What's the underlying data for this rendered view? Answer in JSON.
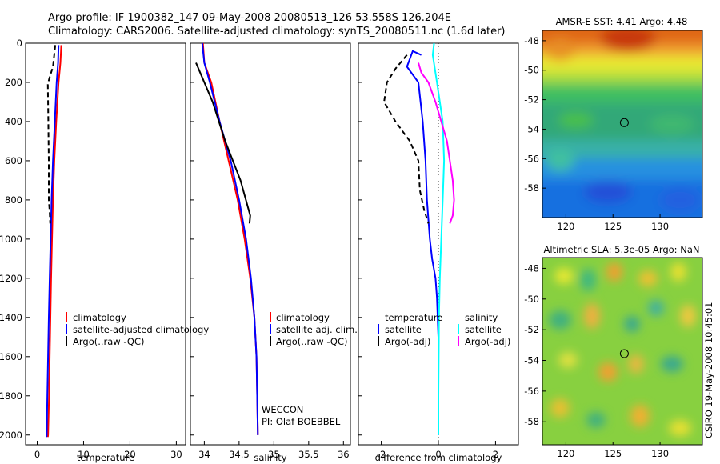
{
  "header": {
    "line1": "Argo profile: IF 1900382_147 09-May-2008 20080513_126 53.558S 126.204E",
    "line2": "Climatology: CARS2006. Satellite-adjusted climatology: synTS_20080511.nc (1.6d later)"
  },
  "colors": {
    "climatology": "#ff0000",
    "satellite": "#0000ff",
    "argo": "#000000",
    "salinity_satellite": "#00ffff",
    "salinity_argo": "#ff00ff"
  },
  "chart_data": [
    {
      "type": "line",
      "panel": "temperature",
      "xlabel": "temperature",
      "ylabel": "",
      "xlim": [
        -2.5,
        32
      ],
      "ylim": [
        2050,
        0
      ],
      "xticks": [
        0,
        10,
        20,
        30
      ],
      "yticks": [
        0,
        200,
        400,
        600,
        800,
        1000,
        1200,
        1400,
        1600,
        1800,
        2000
      ],
      "legend": [
        "climatology",
        "satellite-adjusted climatology",
        "Argo(..raw -QC)"
      ],
      "series": [
        {
          "name": "climatology",
          "color": "#ff0000",
          "x": [
            5.2,
            5.0,
            4.6,
            4.1,
            3.7,
            3.4,
            3.2,
            3.0,
            2.85,
            2.7,
            2.55,
            2.35,
            2.3
          ],
          "y": [
            10,
            100,
            200,
            400,
            600,
            800,
            1000,
            1200,
            1400,
            1600,
            1800,
            2000,
            2010
          ]
        },
        {
          "name": "satellite-adjusted climatology",
          "color": "#0000ff",
          "x": [
            4.6,
            4.5,
            4.2,
            3.8,
            3.4,
            3.1,
            2.9,
            2.7,
            2.5,
            2.35,
            2.2,
            2.05,
            2.0
          ],
          "y": [
            10,
            100,
            200,
            400,
            600,
            800,
            1000,
            1200,
            1400,
            1600,
            1800,
            2000,
            2010
          ]
        },
        {
          "name": "Argo(..raw -QC)",
          "color": "#000000",
          "dashed": true,
          "x": [
            3.9,
            3.4,
            2.6,
            2.3,
            2.4,
            2.5,
            2.5,
            2.7,
            2.8
          ],
          "y": [
            10,
            120,
            180,
            210,
            400,
            600,
            800,
            860,
            920
          ]
        }
      ]
    },
    {
      "type": "line",
      "panel": "salinity",
      "xlabel": "salinity",
      "ylabel": "",
      "xlim": [
        33.8,
        36.1
      ],
      "ylim": [
        2050,
        0
      ],
      "xticks": [
        34,
        34.5,
        35,
        35.5,
        36
      ],
      "legend": [
        "climatology",
        "satellite adj. clim.",
        "Argo(..raw -QC)"
      ],
      "series": [
        {
          "name": "climatology",
          "color": "#ff0000",
          "x": [
            33.98,
            34.0,
            34.1,
            34.22,
            34.35,
            34.48,
            34.58,
            34.66,
            34.72,
            34.75,
            34.76,
            34.77
          ],
          "y": [
            0,
            100,
            200,
            400,
            600,
            800,
            1000,
            1200,
            1400,
            1600,
            1800,
            2000
          ]
        },
        {
          "name": "satellite adj. clim.",
          "color": "#0000ff",
          "x": [
            33.97,
            34.0,
            34.08,
            34.22,
            34.38,
            34.5,
            34.6,
            34.67,
            34.72,
            34.75,
            34.76,
            34.77
          ],
          "y": [
            0,
            100,
            200,
            400,
            600,
            800,
            1000,
            1200,
            1400,
            1600,
            1800,
            2000
          ]
        },
        {
          "name": "Argo(..raw -QC)",
          "color": "#000000",
          "x": [
            33.88,
            34.0,
            34.12,
            34.3,
            34.52,
            34.66,
            34.65
          ],
          "y": [
            100,
            200,
            300,
            500,
            700,
            880,
            920
          ]
        }
      ]
    },
    {
      "type": "line",
      "panel": "difference",
      "xlabel": "difference from climatology",
      "ylabel": "",
      "xlim": [
        -2.8,
        2.8
      ],
      "ylim": [
        2050,
        0
      ],
      "xticks": [
        -2,
        0,
        2
      ],
      "legend": [
        "temperature",
        "satellite",
        "Argo(-adj)",
        "salinity",
        "satellite",
        "Argo(-adj)"
      ],
      "series": [
        {
          "name": "temperature satellite",
          "color": "#0000ff",
          "x": [
            -0.6,
            -0.9,
            -1.1,
            -0.7,
            -0.55,
            -0.45,
            -0.4,
            -0.35,
            -0.3,
            -0.22,
            -0.1,
            -0.05,
            0,
            0,
            0
          ],
          "y": [
            60,
            40,
            120,
            200,
            400,
            600,
            800,
            900,
            1000,
            1100,
            1200,
            1300,
            1500,
            1800,
            2000
          ]
        },
        {
          "name": "temperature Argo(-adj)",
          "color": "#000000",
          "dashed": true,
          "x": [
            -1.1,
            -1.5,
            -1.8,
            -1.9,
            -1.7,
            -1.5,
            -1.0,
            -0.7,
            -0.65,
            -0.5,
            -0.35
          ],
          "y": [
            60,
            130,
            200,
            300,
            350,
            400,
            500,
            600,
            750,
            850,
            920
          ]
        },
        {
          "name": "salinity satellite",
          "color": "#00ffff",
          "x": [
            -0.15,
            -0.2,
            -0.05,
            0.15,
            0.2,
            0.15,
            0.1,
            0.05,
            0.02,
            0,
            0
          ],
          "y": [
            0,
            60,
            200,
            400,
            600,
            800,
            1000,
            1200,
            1400,
            1800,
            2000
          ]
        },
        {
          "name": "salinity Argo(-adj)",
          "color": "#ff00ff",
          "x": [
            -0.7,
            -0.6,
            -0.35,
            -0.1,
            0.1,
            0.3,
            0.4,
            0.5,
            0.55,
            0.5,
            0.4
          ],
          "y": [
            100,
            150,
            200,
            300,
            400,
            500,
            600,
            700,
            800,
            880,
            920
          ]
        }
      ]
    },
    {
      "type": "heatmap",
      "panel": "sst-map",
      "title": "AMSR-E SST: 4.41 Argo: 4.48",
      "xlim": [
        117.5,
        134.5
      ],
      "ylim": [
        -60,
        -47.3
      ],
      "xticks": [
        120,
        125,
        130
      ],
      "yticks": [
        -48,
        -50,
        -52,
        -54,
        -56,
        -58
      ],
      "marker": {
        "lon": 126.204,
        "lat": -53.558
      },
      "colormap": "jet"
    },
    {
      "type": "heatmap",
      "panel": "sla-map",
      "title": "Altimetric SLA: 5.3e-05 Argo: NaN",
      "xlim": [
        117.5,
        134.5
      ],
      "ylim": [
        -59.5,
        -47.3
      ],
      "xticks": [
        120,
        125,
        130
      ],
      "yticks": [
        -48,
        -50,
        -52,
        -54,
        -56,
        -58
      ],
      "marker": {
        "lon": 126.204,
        "lat": -53.558
      },
      "colormap": "jet"
    }
  ],
  "annotations": {
    "program": "WECCON",
    "pi": "PI: Olaf BOEBBEL",
    "stamp": "CSIRO 19-May-2008 10:45:01"
  }
}
